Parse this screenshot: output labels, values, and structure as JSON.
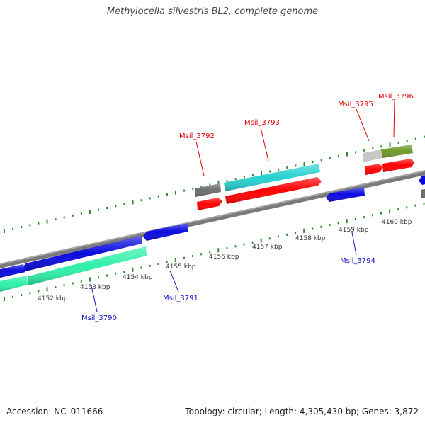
{
  "title": "Methylocella silvestris BL2, complete genome",
  "footer": {
    "accession": "Accession: NC_011666",
    "summary": "Topology: circular; Length: 4,305,430 bp; Genes: 3,872"
  },
  "scale_labels": [
    "4152 kbp",
    "4153 kbp",
    "4154 kbp",
    "4155 kbp",
    "4156 kbp",
    "4157 kbp",
    "4158 kbp",
    "4159 kbp",
    "4160 kbp"
  ],
  "gene_labels": {
    "top": [
      "Msil_3792",
      "Msil_3793",
      "Msil_3795",
      "Msil_3796"
    ],
    "bottom": [
      "Msil_3790",
      "Msil_3791",
      "Msil_3794"
    ]
  },
  "colors": {
    "backbone": "#7a7a7a",
    "tick": "#2e8b2e",
    "top_label": "#e00000",
    "bottom_label": "#1010c0",
    "red": "#ff0000",
    "blue": "#0a0adf",
    "teal": "#28d0d0",
    "mint": "#2ef0a8",
    "dark_grey": "#6e6e6e",
    "light_grey": "#c8c8c8",
    "olive": "#6f9a2a"
  }
}
